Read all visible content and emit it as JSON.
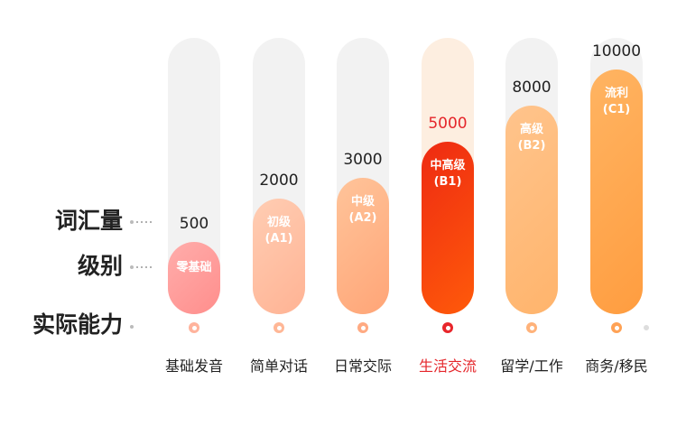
{
  "row_labels": {
    "vocab": "词汇量",
    "level": "级别",
    "ability": "实际能力"
  },
  "chart_data": {
    "type": "bar",
    "categories": [
      "基础发音",
      "简单对话",
      "日常交际",
      "生活交流",
      "留学/工作",
      "商务/移民"
    ],
    "values": [
      500,
      2000,
      3000,
      5000,
      8000,
      10000
    ],
    "level_names": [
      "零基础",
      "初级\n(A1)",
      "中级\n(A2)",
      "中高级\n(B1)",
      "高级\n(B2)",
      "流利\n(C1)"
    ],
    "highlight_index": 3,
    "colors": {
      "track": "#f2f2f2",
      "highlight_track": "#fdeee0",
      "text": "#222222",
      "highlight_text": "#e5262b",
      "bar_gradients": [
        [
          "#ffadab",
          "#ff8e8c"
        ],
        [
          "#ffcdb3",
          "#ffb394"
        ],
        [
          "#ffc49a",
          "#ffa577"
        ],
        [
          "#ee2a12",
          "#ff5a0a"
        ],
        [
          "#ffc48c",
          "#ffb46c"
        ],
        [
          "#ffb462",
          "#ff9d40"
        ]
      ],
      "markers": [
        "#ffb39c",
        "#ffb796",
        "#ffaa82",
        "#e8262b",
        "#ffb27a",
        "#ffa255"
      ]
    }
  }
}
